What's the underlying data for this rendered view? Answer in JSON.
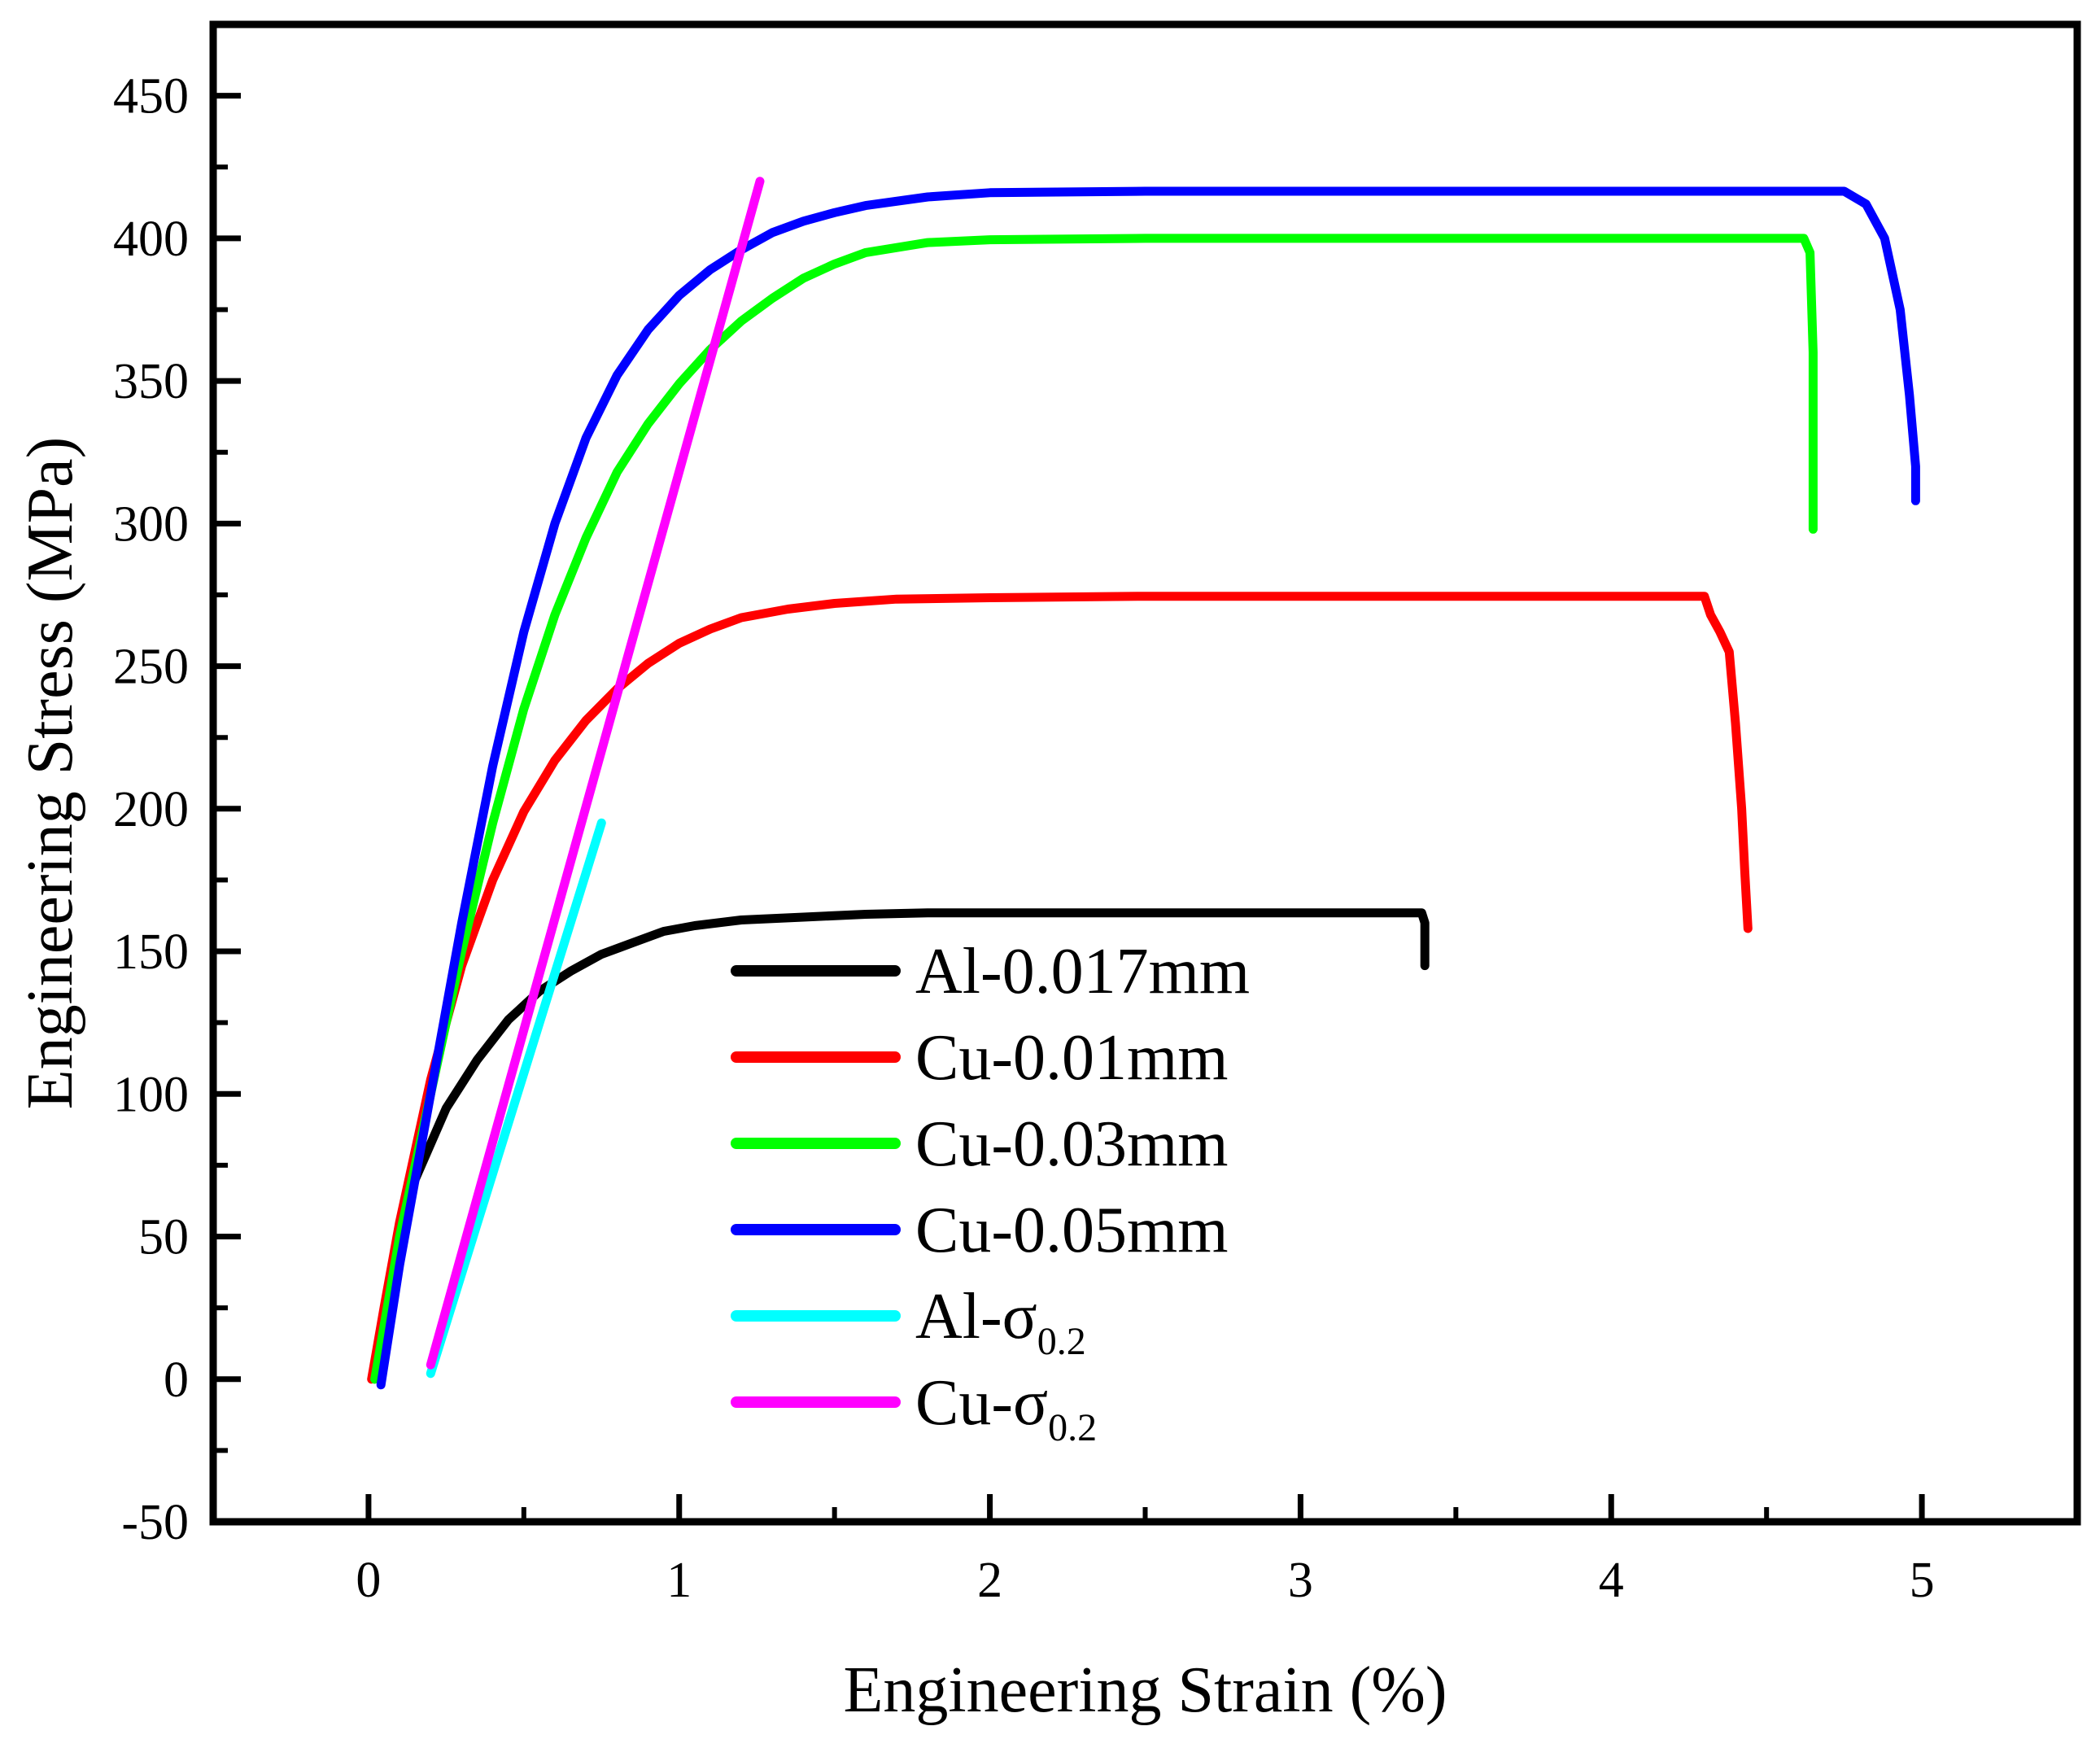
{
  "chart_data": {
    "type": "line",
    "title": "",
    "xlabel": "Engineering Strain (%)",
    "ylabel": "Engineering Stress (MPa)",
    "xlim": [
      -0.5,
      5.5
    ],
    "ylim": [
      -50,
      475
    ],
    "x_ticks": [
      0,
      1,
      2,
      3,
      4,
      5
    ],
    "x_tick_labels": [
      "0",
      "1",
      "2",
      "3",
      "4",
      "5"
    ],
    "y_ticks": [
      -50,
      0,
      50,
      100,
      150,
      200,
      250,
      300,
      350,
      400,
      450
    ],
    "y_tick_labels": [
      "-50",
      "0",
      "50",
      "100",
      "150",
      "200",
      "250",
      "300",
      "350",
      "400",
      "450"
    ],
    "grid": false,
    "legend_position": "bottom-center",
    "series": [
      {
        "name": "Al-0.017mm",
        "legend_main": "Al-0.017mm",
        "legend_sub": "",
        "color": "#000000",
        "x": [
          0.02,
          0.08,
          0.15,
          0.25,
          0.35,
          0.45,
          0.55,
          0.65,
          0.75,
          0.85,
          0.95,
          1.05,
          1.2,
          1.4,
          1.6,
          1.8,
          2.0,
          2.5,
          3.0,
          3.39,
          3.4,
          3.4
        ],
        "y": [
          0,
          40,
          70,
          95,
          112,
          126,
          136,
          143,
          149,
          153,
          157,
          159,
          161,
          162,
          163,
          163.5,
          163.5,
          163.5,
          163.5,
          163.5,
          160,
          145
        ]
      },
      {
        "name": "Cu-0.01mm",
        "legend_main": "Cu-0.01mm",
        "legend_sub": "",
        "color": "#ff0000",
        "x": [
          0.01,
          0.05,
          0.1,
          0.2,
          0.3,
          0.4,
          0.5,
          0.6,
          0.7,
          0.8,
          0.9,
          1.0,
          1.1,
          1.2,
          1.35,
          1.5,
          1.7,
          2.0,
          2.5,
          3.0,
          3.5,
          4.0,
          4.3,
          4.32,
          4.35,
          4.38,
          4.4,
          4.42,
          4.43,
          4.44
        ],
        "y": [
          0,
          25,
          55,
          105,
          145,
          175,
          199,
          217,
          231,
          242,
          251,
          258,
          263,
          267,
          270,
          272,
          273.5,
          274,
          274.5,
          274.5,
          274.5,
          274.5,
          274.5,
          268,
          262,
          255,
          230,
          200,
          178,
          158
        ]
      },
      {
        "name": "Cu-0.03mm",
        "legend_main": "Cu-0.03mm",
        "legend_sub": "",
        "color": "#00ff00",
        "x": [
          0.02,
          0.1,
          0.2,
          0.3,
          0.4,
          0.5,
          0.6,
          0.7,
          0.8,
          0.9,
          1.0,
          1.1,
          1.2,
          1.3,
          1.4,
          1.5,
          1.6,
          1.8,
          2.0,
          2.5,
          3.0,
          3.5,
          4.0,
          4.5,
          4.62,
          4.64,
          4.65,
          4.65
        ],
        "y": [
          0,
          50,
          100,
          150,
          195,
          235,
          268,
          295,
          318,
          335,
          349,
          361,
          371,
          379,
          386,
          391,
          395,
          398.5,
          399.5,
          400,
          400,
          400,
          400,
          400,
          400,
          395,
          360,
          298
        ]
      },
      {
        "name": "Cu-0.05mm",
        "legend_main": "Cu-0.05mm",
        "legend_sub": "",
        "color": "#0000ff",
        "x": [
          0.04,
          0.1,
          0.2,
          0.3,
          0.4,
          0.5,
          0.6,
          0.7,
          0.8,
          0.9,
          1.0,
          1.1,
          1.2,
          1.3,
          1.4,
          1.5,
          1.6,
          1.8,
          2.0,
          2.5,
          3.0,
          3.5,
          4.0,
          4.5,
          4.75,
          4.82,
          4.88,
          4.93,
          4.96,
          4.98,
          4.98
        ],
        "y": [
          -2,
          40,
          100,
          160,
          215,
          262,
          300,
          330,
          352,
          368,
          380,
          389,
          396,
          402,
          406,
          409,
          411.5,
          414.5,
          416,
          416.5,
          416.5,
          416.5,
          416.5,
          416.5,
          416.5,
          412,
          400,
          375,
          345,
          320,
          308
        ]
      },
      {
        "name": "Al-σ0.2",
        "legend_main": "Al-σ",
        "legend_sub": "0.2",
        "color": "#00ffff",
        "x": [
          0.2,
          0.75
        ],
        "y": [
          2,
          195
        ]
      },
      {
        "name": "Cu-σ0.2",
        "legend_main": "Cu-σ",
        "legend_sub": "0.2",
        "color": "#ff00ff",
        "x": [
          0.2,
          1.26
        ],
        "y": [
          5,
          420
        ]
      }
    ]
  }
}
